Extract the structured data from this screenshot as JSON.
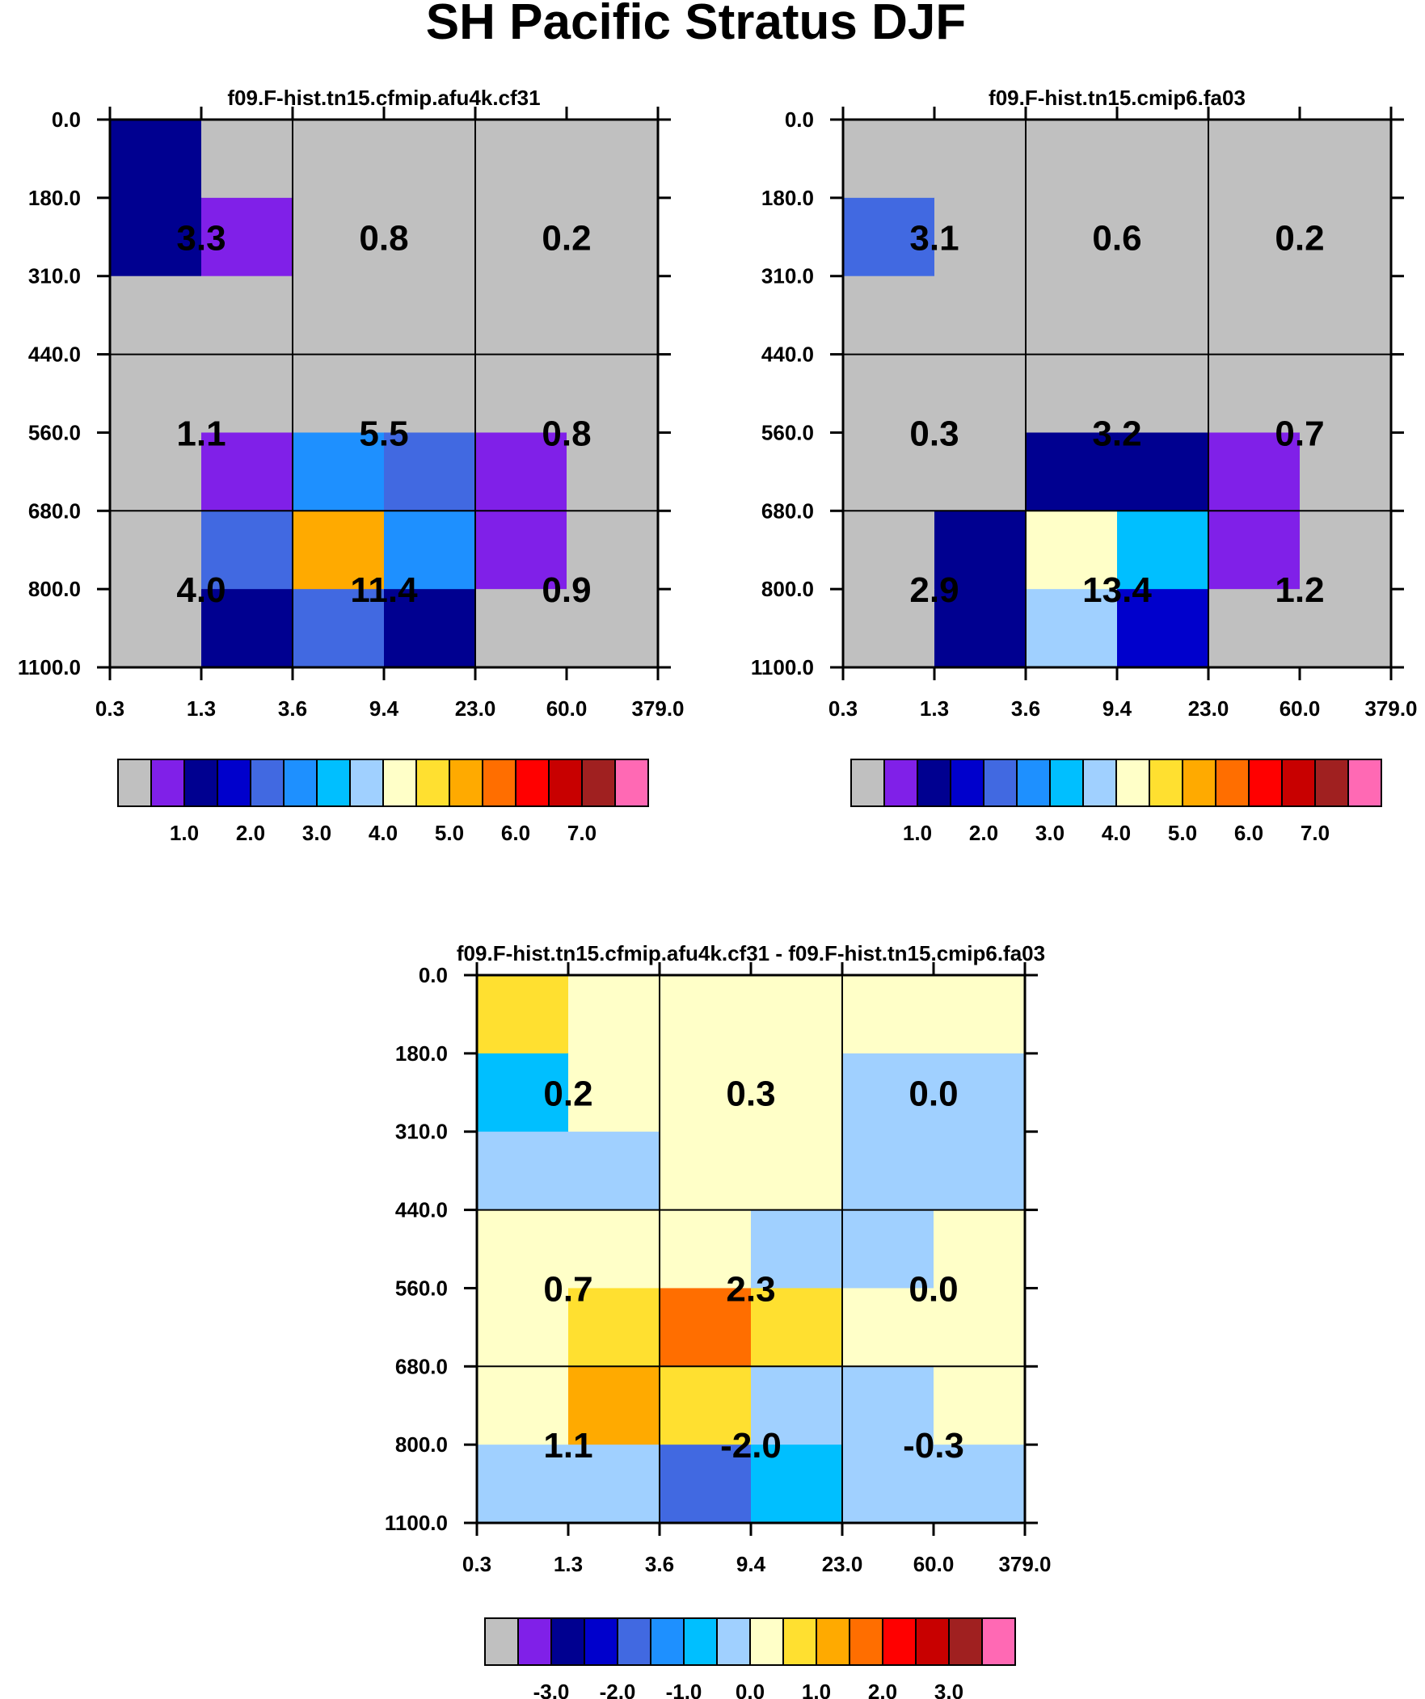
{
  "title": "SH Pacific Stratus DJF",
  "axes": {
    "x_ticks": [
      "0.3",
      "1.3",
      "3.6",
      "9.4",
      "23.0",
      "60.0",
      "379.0"
    ],
    "y_ticks": [
      "0.0",
      "180.0",
      "310.0",
      "440.0",
      "560.0",
      "680.0",
      "800.0",
      "1100.0"
    ]
  },
  "colorbars": {
    "model": {
      "colors": [
        "#c0c0c0",
        "#8020e8",
        "#000090",
        "#0000cc",
        "#4169e1",
        "#1e90ff",
        "#00bfff",
        "#a0d0ff",
        "#ffffc8",
        "#ffe030",
        "#ffaa00",
        "#ff6e00",
        "#ff0000",
        "#c80000",
        "#a02020",
        "#ff69b4"
      ],
      "labels": [
        "1.0",
        "2.0",
        "3.0",
        "4.0",
        "5.0",
        "6.0",
        "7.0"
      ]
    },
    "diff": {
      "colors": [
        "#c0c0c0",
        "#8020e8",
        "#000090",
        "#0000cc",
        "#4169e1",
        "#1e90ff",
        "#00bfff",
        "#a0d0ff",
        "#ffffc8",
        "#ffe030",
        "#ffaa00",
        "#ff6e00",
        "#ff0000",
        "#c80000",
        "#a02020",
        "#ff69b4"
      ],
      "labels": [
        "-3.0",
        "-2.0",
        "-1.0",
        "0.0",
        "1.0",
        "2.0",
        "3.0"
      ]
    }
  },
  "chart_data": [
    {
      "type": "heatmap",
      "title": "f09.F-hist.tn15.cfmip.afu4k.cf31",
      "colorbar": "model",
      "cells": [
        [
          2,
          0,
          0,
          0,
          0,
          0
        ],
        [
          2,
          1,
          0,
          0,
          0,
          0
        ],
        [
          0,
          0,
          0,
          0,
          0,
          0
        ],
        [
          0,
          0,
          0,
          0,
          0,
          0
        ],
        [
          0,
          1,
          5,
          4,
          1,
          0
        ],
        [
          0,
          4,
          10,
          5,
          1,
          0
        ],
        [
          0,
          2,
          4,
          2,
          0,
          0
        ]
      ],
      "sums": [
        [
          "3.3",
          "0.8",
          "0.2"
        ],
        [
          "1.1",
          "5.5",
          "0.8"
        ],
        [
          "4.0",
          "11.4",
          "0.9"
        ]
      ]
    },
    {
      "type": "heatmap",
      "title": "f09.F-hist.tn15.cmip6.fa03",
      "colorbar": "model",
      "cells": [
        [
          0,
          0,
          0,
          0,
          0,
          0
        ],
        [
          4,
          0,
          0,
          0,
          0,
          0
        ],
        [
          0,
          0,
          0,
          0,
          0,
          0
        ],
        [
          0,
          0,
          0,
          0,
          0,
          0
        ],
        [
          0,
          0,
          2,
          2,
          1,
          0
        ],
        [
          0,
          2,
          8,
          6,
          1,
          0
        ],
        [
          0,
          2,
          7,
          3,
          0,
          0
        ]
      ],
      "sums": [
        [
          "3.1",
          "0.6",
          "0.2"
        ],
        [
          "0.3",
          "3.2",
          "0.7"
        ],
        [
          "2.9",
          "13.4",
          "1.2"
        ]
      ]
    },
    {
      "type": "heatmap",
      "title": "f09.F-hist.tn15.cfmip.afu4k.cf31 - f09.F-hist.tn15.cmip6.fa03",
      "colorbar": "diff",
      "cells": [
        [
          9,
          8,
          8,
          8,
          8,
          8
        ],
        [
          6,
          8,
          8,
          8,
          7,
          7
        ],
        [
          7,
          7,
          8,
          8,
          7,
          7
        ],
        [
          8,
          8,
          8,
          7,
          7,
          8
        ],
        [
          8,
          9,
          11,
          9,
          8,
          8
        ],
        [
          8,
          10,
          9,
          7,
          7,
          8
        ],
        [
          7,
          7,
          4,
          6,
          7,
          7
        ]
      ],
      "sums": [
        [
          "0.2",
          "0.3",
          "0.0"
        ],
        [
          "0.7",
          "2.3",
          "0.0"
        ],
        [
          "1.1",
          "-2.0",
          "-0.3"
        ]
      ]
    }
  ]
}
